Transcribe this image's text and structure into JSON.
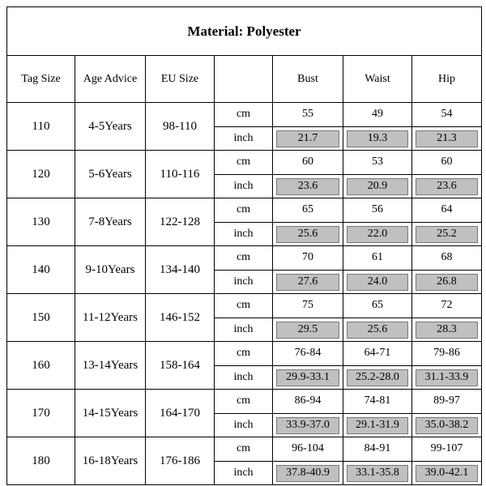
{
  "header": {
    "title": "Material: Polyester"
  },
  "table": {
    "columns": [
      "Tag Size",
      "Age Advice",
      "EU Size",
      "Bust",
      "Waist",
      "Hip"
    ],
    "rows": [
      {
        "tag": "110",
        "age": "4-5Years",
        "eu": "98-110",
        "units": [
          "cm",
          "inch"
        ],
        "cm": [
          "55",
          "49",
          "54"
        ],
        "inch": [
          "21.7",
          "19.3",
          "21.3"
        ]
      },
      {
        "tag": "120",
        "age": "5-6Years",
        "eu": "110-116",
        "units": [
          "cm",
          "inch"
        ],
        "cm": [
          "60",
          "53",
          "60"
        ],
        "inch": [
          "23.6",
          "20.9",
          "23.6"
        ]
      },
      {
        "tag": "130",
        "age": "7-8Years",
        "eu": "122-128",
        "units": [
          "cm",
          "inch"
        ],
        "cm": [
          "65",
          "56",
          "64"
        ],
        "inch": [
          "25.6",
          "22.0",
          "25.2"
        ]
      },
      {
        "tag": "140",
        "age": "9-10Years",
        "eu": "134-140",
        "units": [
          "cm",
          "inch"
        ],
        "cm": [
          "70",
          "61",
          "68"
        ],
        "inch": [
          "27.6",
          "24.0",
          "26.8"
        ]
      },
      {
        "tag": "150",
        "age": "11-12Years",
        "eu": "146-152",
        "units": [
          "cm",
          "inch"
        ],
        "cm": [
          "75",
          "65",
          "72"
        ],
        "inch": [
          "29.5",
          "25.6",
          "28.3"
        ]
      },
      {
        "tag": "160",
        "age": "13-14Years",
        "eu": "158-164",
        "units": [
          "cm",
          "inch"
        ],
        "cm": [
          "76-84",
          "64-71",
          "79-86"
        ],
        "inch": [
          "29.9-33.1",
          "25.2-28.0",
          "31.1-33.9"
        ]
      },
      {
        "tag": "170",
        "age": "14-15Years",
        "eu": "164-170",
        "units": [
          "cm",
          "inch"
        ],
        "cm": [
          "86-94",
          "74-81",
          "89-97"
        ],
        "inch": [
          "33.9-37.0",
          "29.1-31.9",
          "35.0-38.2"
        ]
      },
      {
        "tag": "180",
        "age": "16-18Years",
        "eu": "176-186",
        "units": [
          "cm",
          "inch"
        ],
        "cm": [
          "96-104",
          "84-91",
          "99-107"
        ],
        "inch": [
          "37.8-40.9",
          "33.1-35.8",
          "39.0-42.1"
        ]
      }
    ]
  }
}
